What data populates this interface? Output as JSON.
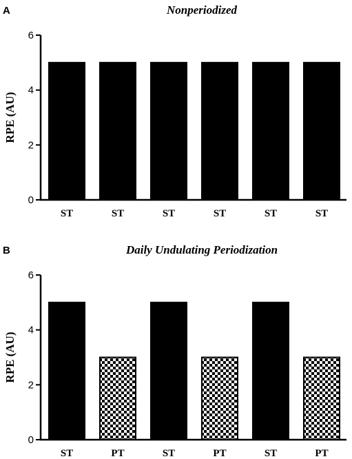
{
  "chart_data": [
    {
      "type": "bar",
      "panel": "A",
      "title": "Nonperiodized",
      "ylabel": "RPE (AU)",
      "xlabel": "",
      "ylim": [
        0,
        6
      ],
      "yticks": [
        0,
        2,
        4,
        6
      ],
      "categories": [
        "ST",
        "ST",
        "ST",
        "ST",
        "ST",
        "ST"
      ],
      "values": [
        5,
        5,
        5,
        5,
        5,
        5
      ],
      "fills": [
        "solid",
        "solid",
        "solid",
        "solid",
        "solid",
        "solid"
      ],
      "grid": false
    },
    {
      "type": "bar",
      "panel": "B",
      "title": "Daily Undulating Periodization",
      "ylabel": "RPE (AU)",
      "xlabel": "",
      "ylim": [
        0,
        6
      ],
      "yticks": [
        0,
        2,
        4,
        6
      ],
      "categories": [
        "ST",
        "PT",
        "ST",
        "PT",
        "ST",
        "PT"
      ],
      "values": [
        5,
        3,
        5,
        3,
        5,
        3
      ],
      "fills": [
        "solid",
        "checkered",
        "solid",
        "checkered",
        "solid",
        "checkered"
      ],
      "grid": false
    }
  ]
}
